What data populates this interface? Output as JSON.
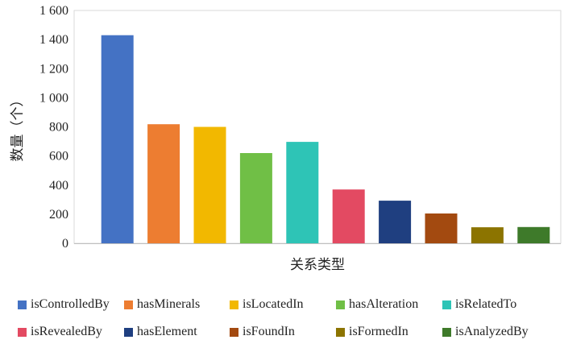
{
  "chart_data": {
    "type": "bar",
    "categories": [
      "isControlledBy",
      "hasMinerals",
      "isLocatedIn",
      "hasAlteration",
      "isRelatedTo",
      "isRevealedBy",
      "hasElement",
      "isFoundIn",
      "isFormedIn",
      "isAnalyzedBy"
    ],
    "values": [
      1430,
      818,
      800,
      620,
      697,
      370,
      293,
      205,
      110,
      112
    ],
    "colors": [
      "#4472C4",
      "#ED7D31",
      "#F2B800",
      "#70BF46",
      "#2EC4B6",
      "#E34A62",
      "#1F3F80",
      "#A34A10",
      "#8C7400",
      "#3E7A2A"
    ],
    "xlabel": "关系类型",
    "ylabel": "数量（个）",
    "ylim": [
      0,
      1600
    ],
    "yticks": [
      0,
      200,
      400,
      600,
      800,
      1000,
      1200,
      1400,
      1600
    ],
    "ytick_labels": [
      "0",
      "200",
      "400",
      "600",
      "800",
      "1 000",
      "1 200",
      "1 400",
      "1 600"
    ],
    "grid": false,
    "legend_position": "bottom"
  }
}
